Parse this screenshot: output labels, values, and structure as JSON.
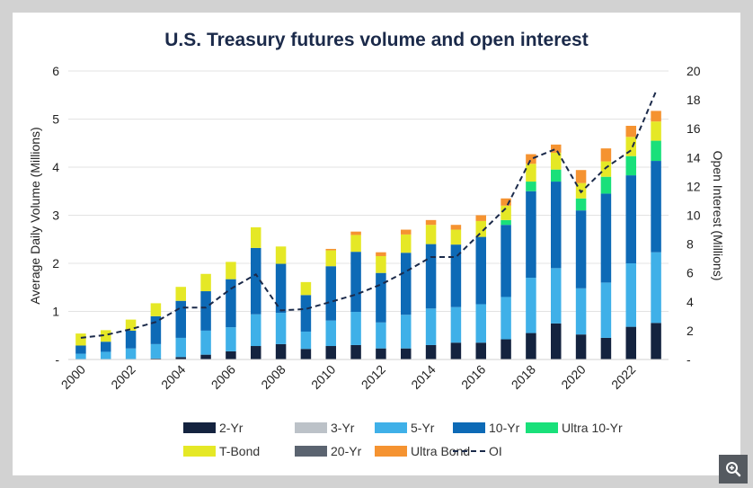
{
  "chart_data": {
    "type": "bar",
    "title": "U.S. Treasury futures volume and open interest",
    "ylabel": "Average Daily Volume (Millions)",
    "y2label": "Open Interest (Millions)",
    "ylim": [
      0,
      6
    ],
    "y2lim": [
      0,
      20
    ],
    "yticks": [
      "-",
      "1",
      "2",
      "3",
      "4",
      "5",
      "6"
    ],
    "y2ticks": [
      "-",
      "2",
      "4",
      "6",
      "8",
      "10",
      "12",
      "14",
      "16",
      "18",
      "20"
    ],
    "categories": [
      "2000",
      "2001",
      "2002",
      "2003",
      "2004",
      "2005",
      "2006",
      "2007",
      "2008",
      "2009",
      "2010",
      "2011",
      "2012",
      "2013",
      "2014",
      "2015",
      "2016",
      "2017",
      "2018",
      "2019",
      "2020",
      "2021",
      "2022",
      "2023"
    ],
    "xtick_labels": [
      "2000",
      "2002",
      "2004",
      "2006",
      "2008",
      "2010",
      "2012",
      "2014",
      "2016",
      "2018",
      "2020",
      "2022"
    ],
    "stacked": true,
    "series": [
      {
        "name": "2-Yr",
        "color": "#14233f",
        "values": [
          0.0,
          0.0,
          0.01,
          0.02,
          0.05,
          0.1,
          0.17,
          0.28,
          0.32,
          0.22,
          0.28,
          0.3,
          0.23,
          0.23,
          0.3,
          0.35,
          0.35,
          0.42,
          0.55,
          0.75,
          0.52,
          0.45,
          0.68,
          0.76
        ]
      },
      {
        "name": "3-Yr",
        "color": "#bcc2c8",
        "values": [
          0,
          0,
          0,
          0,
          0,
          0,
          0,
          0,
          0,
          0,
          0,
          0,
          0,
          0,
          0,
          0,
          0,
          0,
          0,
          0,
          0,
          0,
          0,
          0
        ]
      },
      {
        "name": "5-Yr",
        "color": "#3fb0e8",
        "values": [
          0.12,
          0.16,
          0.22,
          0.3,
          0.4,
          0.5,
          0.5,
          0.66,
          0.65,
          0.36,
          0.53,
          0.69,
          0.54,
          0.7,
          0.76,
          0.74,
          0.8,
          0.88,
          1.15,
          1.15,
          0.96,
          1.15,
          1.32,
          1.47
        ]
      },
      {
        "name": "10-Yr",
        "color": "#0d6ab6",
        "values": [
          0.17,
          0.21,
          0.37,
          0.58,
          0.77,
          0.82,
          1.0,
          1.38,
          1.02,
          0.76,
          1.13,
          1.25,
          1.03,
          1.29,
          1.34,
          1.3,
          1.4,
          1.5,
          1.8,
          1.8,
          1.62,
          1.85,
          1.83,
          1.9
        ]
      },
      {
        "name": "Ultra 10-Yr",
        "color": "#19e07a",
        "values": [
          0,
          0,
          0,
          0,
          0,
          0,
          0,
          0,
          0,
          0,
          0,
          0,
          0,
          0,
          0,
          0,
          0,
          0.1,
          0.2,
          0.25,
          0.25,
          0.35,
          0.4,
          0.42
        ]
      },
      {
        "name": "T-Bond",
        "color": "#e5e826",
        "values": [
          0.25,
          0.24,
          0.23,
          0.27,
          0.29,
          0.36,
          0.36,
          0.43,
          0.36,
          0.27,
          0.33,
          0.35,
          0.35,
          0.38,
          0.4,
          0.31,
          0.33,
          0.3,
          0.37,
          0.35,
          0.32,
          0.32,
          0.4,
          0.4
        ]
      },
      {
        "name": "20-Yr",
        "color": "#5b6470",
        "values": [
          0,
          0,
          0,
          0,
          0,
          0,
          0,
          0,
          0,
          0,
          0,
          0,
          0,
          0,
          0,
          0,
          0,
          0,
          0,
          0,
          0,
          0,
          0,
          0
        ]
      },
      {
        "name": "Ultra Bond",
        "color": "#f59331",
        "values": [
          0,
          0,
          0,
          0,
          0,
          0,
          0,
          0,
          0,
          0,
          0.03,
          0.07,
          0.08,
          0.1,
          0.1,
          0.1,
          0.12,
          0.15,
          0.2,
          0.17,
          0.27,
          0.27,
          0.23,
          0.22
        ]
      }
    ],
    "line": {
      "name": "OI",
      "axis": "y2",
      "color": "#1b2a4a",
      "style": "dashed",
      "values": [
        1.5,
        1.7,
        2.1,
        2.6,
        3.6,
        3.6,
        4.9,
        5.9,
        3.4,
        3.5,
        4.0,
        4.5,
        5.2,
        6.1,
        7.1,
        7.1,
        8.8,
        10.5,
        13.9,
        14.6,
        11.6,
        13.3,
        14.5,
        18.6
      ]
    },
    "legend": [
      "2-Yr",
      "3-Yr",
      "5-Yr",
      "10-Yr",
      "Ultra 10-Yr",
      "T-Bond",
      "20-Yr",
      "Ultra Bond",
      "OI"
    ],
    "legend_placement": "bottom"
  },
  "ui": {
    "zoom_icon": "zoom-in-icon"
  }
}
